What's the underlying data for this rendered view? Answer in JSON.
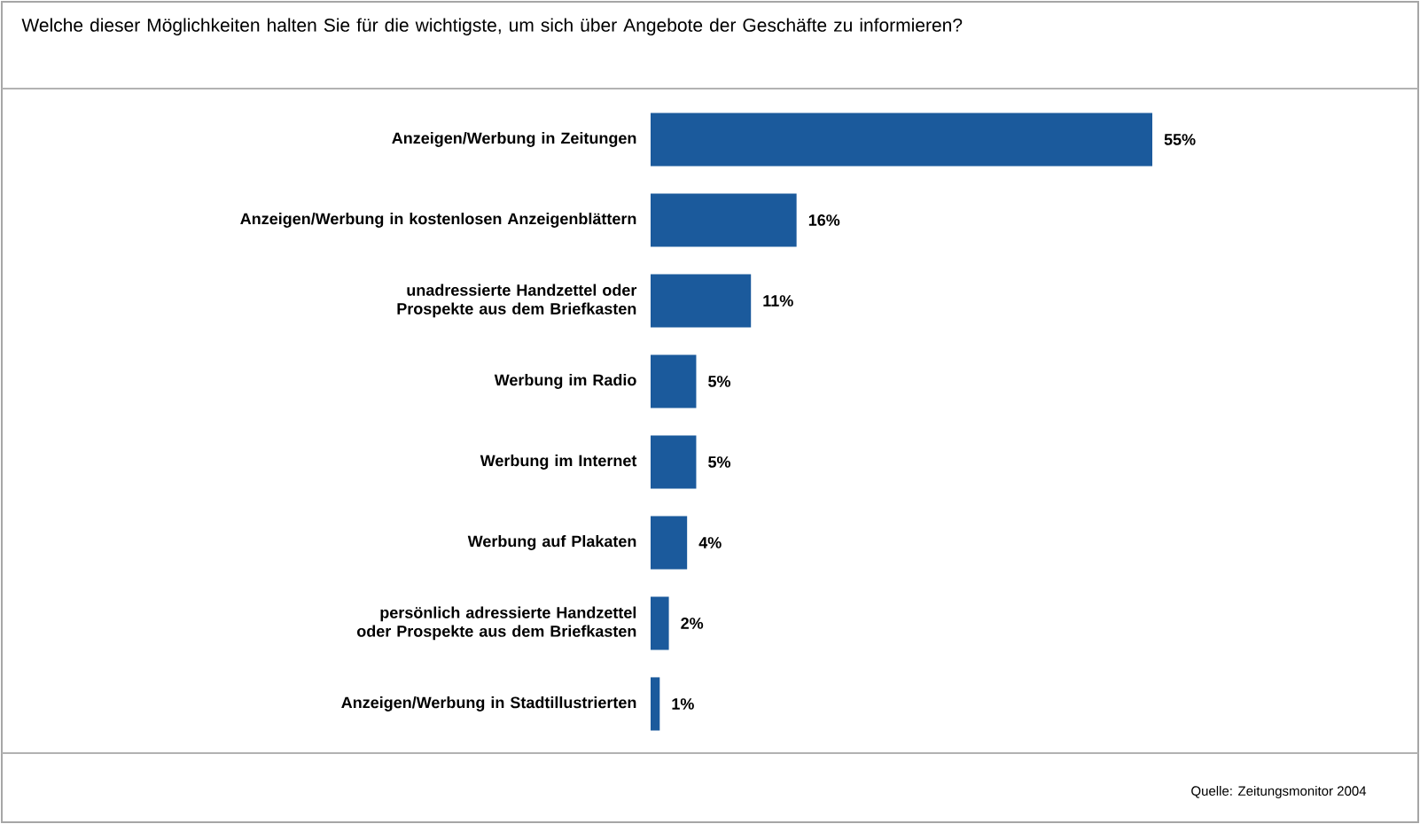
{
  "chart_data": {
    "type": "bar",
    "orientation": "horizontal",
    "subtitle": "Welche dieser Möglichkeiten halten Sie für die wichtigste, um sich über Angebote der Geschäfte zu informieren?",
    "categories": [
      "Anzeigen/Werbung in Zeitungen",
      "Anzeigen/Werbung in kostenlosen Anzeigenblättern",
      "unadressierte Handzettel oder Prospekte aus dem Briefkasten",
      "Werbung im Radio",
      "Werbung im Internet",
      "Werbung auf Plakaten",
      "persönlich adressierte Handzettel oder Prospekte aus dem Briefkasten",
      "Anzeigen/Werbung in Stadtillustrierten"
    ],
    "values": [
      55,
      16,
      11,
      5,
      5,
      4,
      2,
      1
    ],
    "value_labels": [
      "55%",
      "16%",
      "11%",
      "5%",
      "5%",
      "4%",
      "2%",
      "1%"
    ],
    "color": "#1b5a9c",
    "annotations": [
      "Quelle: Zeitungsmonitor 2004"
    ]
  }
}
